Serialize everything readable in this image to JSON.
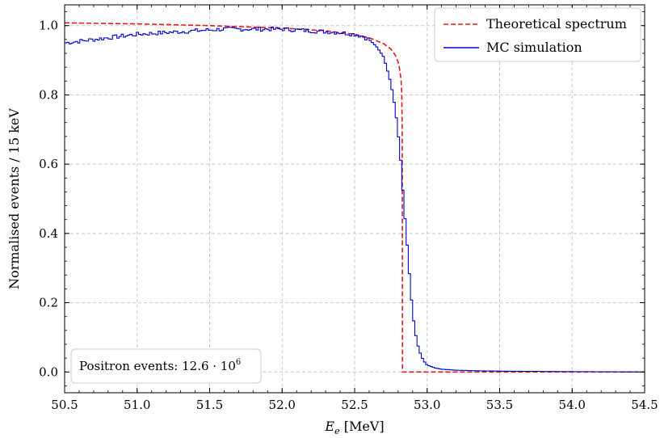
{
  "chart_data": {
    "type": "line",
    "xlabel": "E_e [MeV]",
    "ylabel": "Normalised events / 15 keV",
    "xlim": [
      50.5,
      54.5
    ],
    "ylim": [
      -0.06,
      1.06
    ],
    "xticks": [
      50.5,
      51.0,
      51.5,
      52.0,
      52.5,
      53.0,
      53.5,
      54.0,
      54.5
    ],
    "xtick_labels": [
      "50.5",
      "51.0",
      "51.5",
      "52.0",
      "52.5",
      "53.0",
      "53.5",
      "54.0",
      "54.5"
    ],
    "yticks": [
      0.0,
      0.2,
      0.4,
      0.6,
      0.8,
      1.0
    ],
    "ytick_labels": [
      "0.0",
      "0.2",
      "0.4",
      "0.6",
      "0.8",
      "1.0"
    ],
    "grid": true,
    "legend_position": "top-right",
    "annotation": {
      "prefix": "Positron events: 12.6 · 10",
      "exponent": "6"
    },
    "series": [
      {
        "name": "Theoretical spectrum",
        "style": "dashed",
        "color": "#e31a1c",
        "x": [
          50.5,
          51.0,
          51.5,
          52.0,
          52.3,
          52.5,
          52.6,
          52.7,
          52.75,
          52.78,
          52.8,
          52.81,
          52.82,
          52.825,
          52.828,
          52.829,
          52.83,
          53.0,
          54.5
        ],
        "y": [
          1.008,
          1.005,
          1.0,
          0.993,
          0.985,
          0.975,
          0.965,
          0.948,
          0.932,
          0.915,
          0.895,
          0.875,
          0.845,
          0.8,
          0.7,
          0.45,
          0.0,
          0.0,
          0.0
        ]
      },
      {
        "name": "MC simulation",
        "style": "steps",
        "color": "#0000cc",
        "x": [
          50.5,
          50.6,
          50.8,
          51.0,
          51.2,
          51.4,
          51.6,
          51.8,
          52.0,
          52.2,
          52.4,
          52.5,
          52.55,
          52.6,
          52.65,
          52.7,
          52.72,
          52.74,
          52.76,
          52.78,
          52.8,
          52.82,
          52.84,
          52.86,
          52.88,
          52.9,
          52.92,
          52.94,
          52.96,
          52.98,
          53.0,
          53.05,
          53.1,
          53.2,
          53.4,
          53.6,
          54.0,
          54.5
        ],
        "y": [
          0.95,
          0.955,
          0.965,
          0.975,
          0.98,
          0.985,
          0.99,
          0.99,
          0.99,
          0.985,
          0.98,
          0.975,
          0.97,
          0.96,
          0.94,
          0.91,
          0.88,
          0.85,
          0.81,
          0.76,
          0.69,
          0.6,
          0.48,
          0.38,
          0.27,
          0.17,
          0.11,
          0.07,
          0.045,
          0.03,
          0.02,
          0.012,
          0.008,
          0.005,
          0.003,
          0.002,
          0.001,
          0.0
        ]
      }
    ]
  }
}
